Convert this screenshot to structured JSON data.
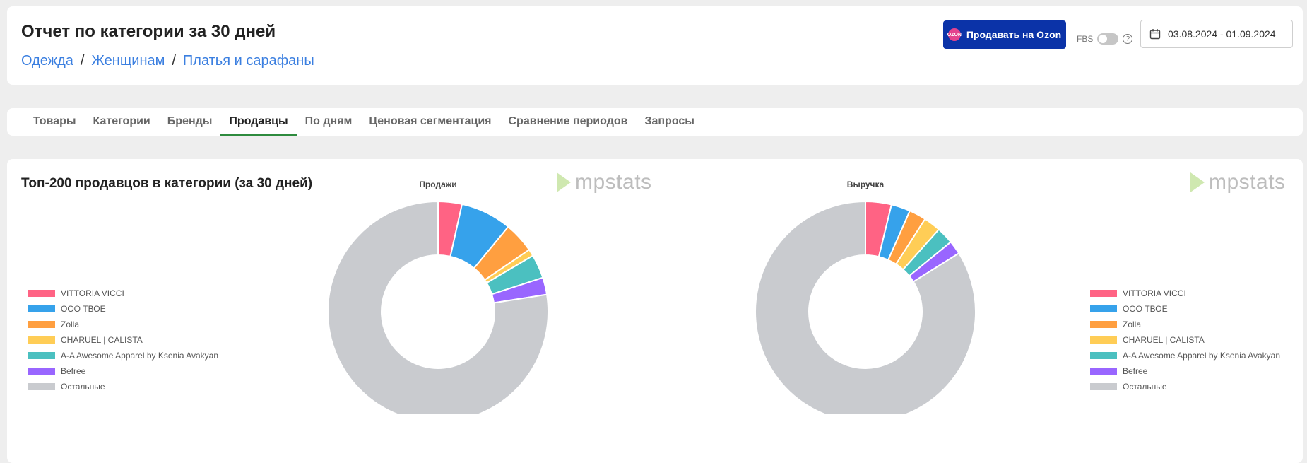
{
  "header": {
    "title": "Отчет по категории за 30 дней",
    "breadcrumb": [
      "Одежда",
      "Женщинам",
      "Платья и сарафаны"
    ],
    "breadcrumb_separator": "/",
    "ozon_button": "Продавать на Ozon",
    "ozon_logo_text": "OZON",
    "fbs_label": "FBS",
    "help_icon": "?",
    "date_range": "03.08.2024 - 01.09.2024"
  },
  "tabs": [
    {
      "label": "Товары",
      "active": false
    },
    {
      "label": "Категории",
      "active": false
    },
    {
      "label": "Бренды",
      "active": false
    },
    {
      "label": "Продавцы",
      "active": true
    },
    {
      "label": "По дням",
      "active": false
    },
    {
      "label": "Ценовая сегментация",
      "active": false
    },
    {
      "label": "Сравнение периодов",
      "active": false
    },
    {
      "label": "Запросы",
      "active": false
    }
  ],
  "section_title": "Топ-200 продавцов в категории (за 30 дней)",
  "watermark": "mpstats",
  "colors": [
    "#ff6384",
    "#36a2eb",
    "#ff9f40",
    "#ffcd56",
    "#4bc0c0",
    "#9966ff",
    "#c9cbcf"
  ],
  "chart_data": [
    {
      "type": "pie",
      "title": "Продажи",
      "labels": [
        "VITTORIA VICCI",
        "ООО ТВОЕ",
        "Zolla",
        "CHARUEL | CALISTA",
        "A-A Awesome Apparel by Ksenia Avakyan",
        "Befree",
        "Остальные"
      ],
      "values": [
        3.5,
        7.5,
        4.5,
        1.0,
        3.5,
        2.5,
        77.5
      ],
      "legend": "left"
    },
    {
      "type": "pie",
      "title": "Выручка",
      "labels": [
        "VITTORIA VICCI",
        "ООО ТВОЕ",
        "Zolla",
        "CHARUEL | CALISTA",
        "A-A Awesome Apparel by Ksenia Avakyan",
        "Befree",
        "Остальные"
      ],
      "values": [
        3.8,
        2.8,
        2.5,
        2.5,
        2.5,
        2.0,
        83.9
      ],
      "legend": "right"
    }
  ]
}
